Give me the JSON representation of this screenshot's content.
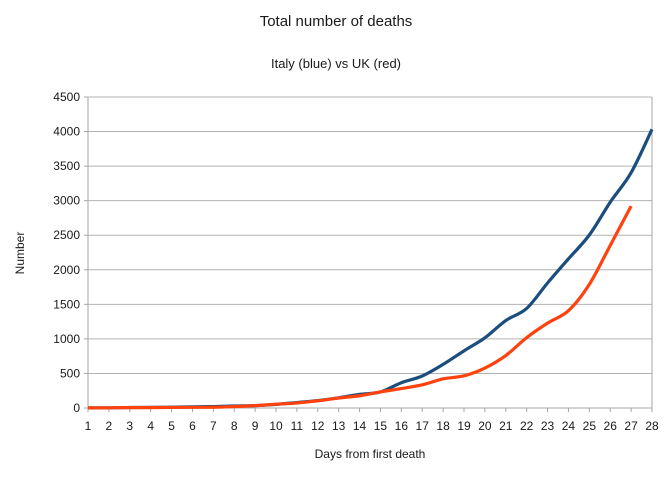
{
  "chart_data": {
    "type": "line",
    "title": "Total number of deaths",
    "subtitle": "Italy (blue) vs UK (red)",
    "xlabel": "Days from first death",
    "ylabel": "Number",
    "x": [
      1,
      2,
      3,
      4,
      5,
      6,
      7,
      8,
      9,
      10,
      11,
      12,
      13,
      14,
      15,
      16,
      17,
      18,
      19,
      20,
      21,
      22,
      23,
      24,
      25,
      26,
      27,
      28
    ],
    "series": [
      {
        "name": "Italy",
        "color": "#1b4e7f",
        "values": [
          2,
          3,
          7,
          10,
          12,
          17,
          21,
          29,
          34,
          52,
          79,
          107,
          148,
          197,
          233,
          366,
          463,
          631,
          827,
          1016,
          1266,
          1441,
          1809,
          2158,
          2503,
          2978,
          3405,
          4032
        ]
      },
      {
        "name": "UK",
        "color": "#ff420e",
        "values": [
          2,
          3,
          5,
          6,
          8,
          10,
          11,
          21,
          35,
          55,
          71,
          104,
          144,
          177,
          233,
          281,
          335,
          422,
          465,
          578,
          759,
          1019,
          1228,
          1408,
          1789,
          2352,
          2921
        ]
      }
    ],
    "ylim": [
      0,
      4500
    ],
    "ytick_step": 500,
    "y_tick_labels": [
      "0",
      "500",
      "1000",
      "1500",
      "2000",
      "2500",
      "3000",
      "3500",
      "4000",
      "4500"
    ],
    "x_tick_labels": [
      "1",
      "2",
      "3",
      "4",
      "5",
      "6",
      "7",
      "8",
      "9",
      "10",
      "11",
      "12",
      "13",
      "14",
      "15",
      "16",
      "17",
      "18",
      "19",
      "20",
      "21",
      "22",
      "23",
      "24",
      "25",
      "26",
      "27",
      "28"
    ],
    "smooth": true,
    "grid": "horizontal",
    "legend": "none",
    "colors": {
      "grid_line": "#b3b3b3",
      "axis_line": "#a6a6a6",
      "text": "#1a1a1a",
      "background": "#ffffff"
    }
  }
}
